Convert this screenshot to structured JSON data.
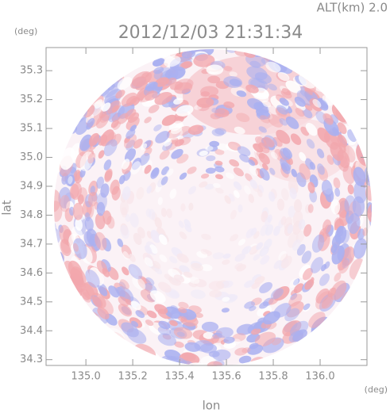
{
  "chart_data": {
    "type": "radar-map",
    "title": "2012/12/03 21:31:34",
    "altitude_label": "ALT(km) 2.0",
    "y_unit": "(deg)",
    "x_unit": "(deg)",
    "xlabel": "lon",
    "ylabel": "lat",
    "xlim": [
      134.83,
      136.2
    ],
    "ylim": [
      34.28,
      35.38
    ],
    "xticks": [
      {
        "value": 135.0,
        "label": "135.0"
      },
      135.2,
      135.4,
      135.6,
      135.8,
      {
        "value": 136.0,
        "label": "136.0"
      }
    ],
    "yticks": [
      34.3,
      34.4,
      34.5,
      34.6,
      34.7,
      34.8,
      34.9,
      {
        "value": 35.0,
        "label": "35.0"
      },
      35.1,
      35.2,
      35.3
    ]
  }
}
